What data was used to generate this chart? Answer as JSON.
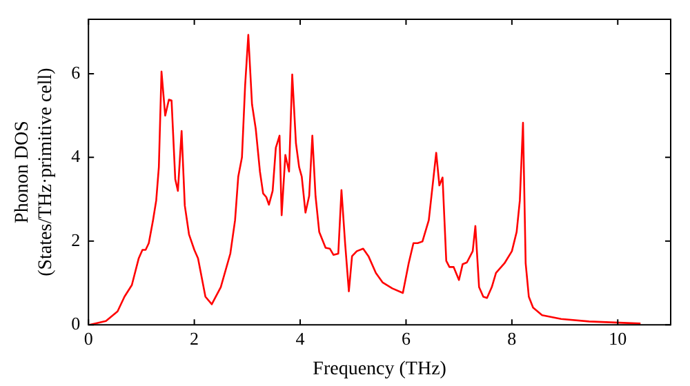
{
  "chart_data": {
    "type": "line",
    "xlabel": "Frequency (THz)",
    "ylabel": "Phonon DOS\n(States/THz·primitive cell)",
    "xlim": [
      0,
      11
    ],
    "ylim": [
      0,
      7.3
    ],
    "xticks": [
      0,
      2,
      4,
      6,
      8,
      10
    ],
    "yticks": [
      0,
      2,
      4,
      6
    ],
    "grid": false,
    "legend": false,
    "marker": "none",
    "line_style": "solid",
    "series": [
      {
        "color": "#ff0000",
        "x": [
          0.02,
          0.33,
          0.55,
          0.68,
          0.82,
          0.95,
          1.02,
          1.08,
          1.14,
          1.22,
          1.28,
          1.33,
          1.38,
          1.45,
          1.52,
          1.57,
          1.64,
          1.69,
          1.76,
          1.82,
          1.9,
          2.0,
          2.07,
          2.21,
          2.33,
          2.5,
          2.68,
          2.77,
          2.83,
          2.9,
          2.96,
          3.02,
          3.09,
          3.16,
          3.24,
          3.3,
          3.36,
          3.41,
          3.48,
          3.54,
          3.61,
          3.65,
          3.72,
          3.79,
          3.85,
          3.92,
          3.98,
          4.03,
          4.1,
          4.17,
          4.23,
          4.29,
          4.36,
          4.48,
          4.56,
          4.63,
          4.72,
          4.78,
          4.85,
          4.92,
          4.98,
          5.07,
          5.19,
          5.29,
          5.43,
          5.56,
          5.74,
          5.94,
          6.05,
          6.14,
          6.22,
          6.31,
          6.43,
          6.51,
          6.57,
          6.63,
          6.69,
          6.76,
          6.82,
          6.9,
          7.0,
          7.07,
          7.15,
          7.26,
          7.31,
          7.38,
          7.46,
          7.53,
          7.62,
          7.7,
          7.86,
          8.0,
          8.09,
          8.15,
          8.21,
          8.26,
          8.32,
          8.4,
          8.57,
          8.93,
          9.46,
          10.43
        ],
        "values": [
          0,
          0.09,
          0.32,
          0.67,
          0.95,
          1.59,
          1.79,
          1.79,
          1.95,
          2.5,
          2.97,
          3.77,
          6.05,
          5.0,
          5.38,
          5.36,
          3.48,
          3.2,
          4.63,
          2.85,
          2.16,
          1.79,
          1.59,
          0.67,
          0.49,
          0.9,
          1.7,
          2.5,
          3.54,
          4.0,
          5.72,
          6.93,
          5.27,
          4.69,
          3.66,
          3.14,
          3.05,
          2.87,
          3.2,
          4.23,
          4.52,
          2.62,
          4.06,
          3.66,
          5.98,
          4.34,
          3.77,
          3.54,
          2.68,
          3.08,
          4.52,
          3.08,
          2.22,
          1.84,
          1.82,
          1.67,
          1.7,
          3.22,
          1.93,
          0.8,
          1.64,
          1.76,
          1.82,
          1.64,
          1.24,
          1.01,
          0.87,
          0.76,
          1.47,
          1.95,
          1.95,
          1.99,
          2.5,
          3.42,
          4.11,
          3.33,
          3.52,
          1.53,
          1.38,
          1.38,
          1.07,
          1.45,
          1.49,
          1.76,
          2.36,
          0.9,
          0.67,
          0.64,
          0.9,
          1.24,
          1.47,
          1.76,
          2.22,
          2.97,
          4.83,
          1.47,
          0.67,
          0.41,
          0.23,
          0.14,
          0.08,
          0.03
        ]
      }
    ]
  }
}
